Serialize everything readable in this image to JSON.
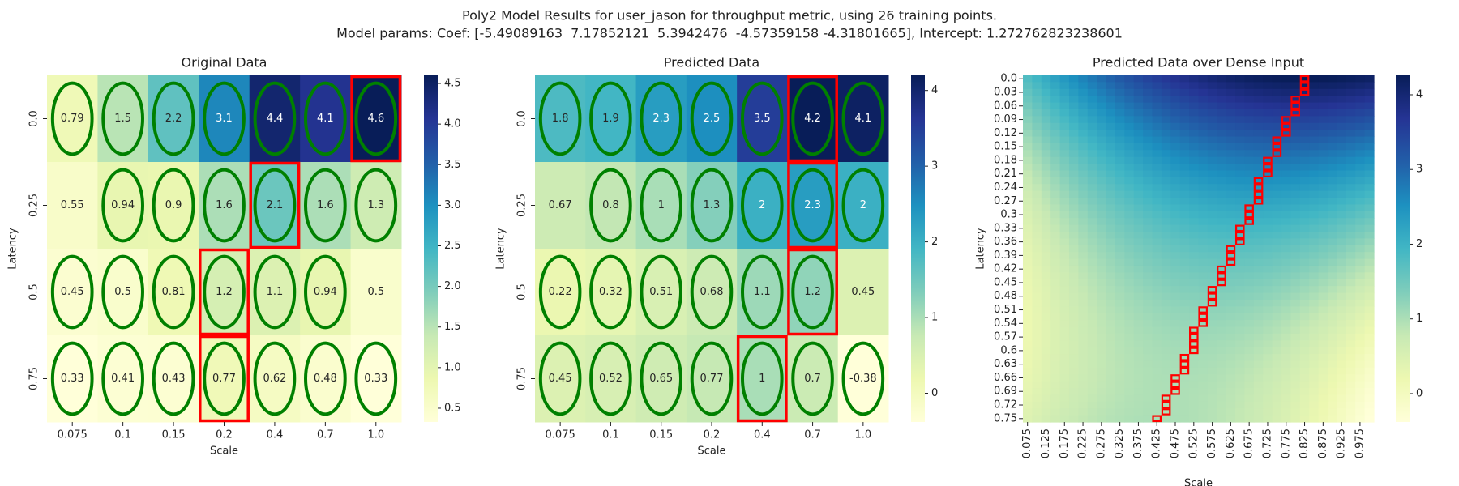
{
  "title": "Poly2 Model Results for user_jason for throughput metric, using 26 training points.",
  "subtitle": "Model params: Coef: [-5.49089163  7.17852121  5.3942476  -4.57359158 -4.31801665], Intercept: 1.272762823238601",
  "chart_data": [
    {
      "type": "heatmap",
      "title": "Original Data",
      "xlabel": "Scale",
      "ylabel": "Latency",
      "categories": [
        "0.075",
        "0.1",
        "0.15",
        "0.2",
        "0.4",
        "0.7",
        "1.0"
      ],
      "y_categories": [
        "0.0",
        "0.25",
        "0.5",
        "0.75"
      ],
      "values": [
        [
          0.79,
          1.5,
          2.2,
          3.1,
          4.4,
          4.1,
          4.6
        ],
        [
          0.55,
          0.94,
          0.9,
          1.6,
          2.1,
          1.6,
          1.3
        ],
        [
          0.45,
          0.5,
          0.81,
          1.2,
          1.1,
          0.94,
          0.5
        ],
        [
          0.33,
          0.41,
          0.43,
          0.77,
          0.62,
          0.48,
          0.33
        ]
      ],
      "marked": [
        [
          true,
          true,
          true,
          true,
          true,
          true,
          true
        ],
        [
          false,
          true,
          true,
          true,
          true,
          true,
          true
        ],
        [
          true,
          true,
          true,
          true,
          true,
          true,
          false
        ],
        [
          true,
          true,
          true,
          true,
          true,
          true,
          true
        ]
      ],
      "zlim": [
        0.33,
        4.6
      ],
      "zticks": [
        0.5,
        {
          "value": 1,
          "label": "1.0"
        },
        1.5,
        {
          "value": 2,
          "label": "2.0"
        },
        2.5,
        {
          "value": 3,
          "label": "3.0"
        },
        3.5,
        {
          "value": 4,
          "label": "4.0"
        },
        4.5
      ],
      "colors": [
        "#ffffd9",
        "#edf8b1",
        "#c7e9b4",
        "#7fcdbb",
        "#41b6c4",
        "#1d91c0",
        "#225ea8",
        "#253494",
        "#081d58"
      ],
      "marker_color": "#008000",
      "highlight_color": "#ff0000"
    },
    {
      "type": "heatmap",
      "title": "Predicted Data",
      "xlabel": "Scale",
      "ylabel": "Latency",
      "categories": [
        "0.075",
        "0.1",
        "0.15",
        "0.2",
        "0.4",
        "0.7",
        "1.0"
      ],
      "y_categories": [
        "0.0",
        "0.25",
        "0.5",
        "0.75"
      ],
      "values": [
        [
          1.8,
          1.9,
          2.3,
          2.5,
          3.5,
          4.2,
          4.1
        ],
        [
          0.67,
          0.8,
          1,
          1.3,
          2,
          2.3,
          2
        ],
        [
          0.22,
          0.32,
          0.51,
          0.68,
          1.1,
          1.2,
          0.45
        ],
        [
          0.45,
          0.52,
          0.65,
          0.77,
          1,
          0.7,
          -0.38
        ]
      ],
      "marked": [
        [
          true,
          true,
          true,
          true,
          true,
          true,
          true
        ],
        [
          false,
          true,
          true,
          true,
          true,
          true,
          true
        ],
        [
          true,
          true,
          true,
          true,
          true,
          true,
          false
        ],
        [
          true,
          true,
          true,
          true,
          true,
          true,
          true
        ]
      ],
      "zlim": [
        -0.38,
        4.2
      ],
      "zticks": [
        0,
        1,
        2,
        3,
        4
      ],
      "colors": [
        "#ffffd9",
        "#edf8b1",
        "#c7e9b4",
        "#7fcdbb",
        "#41b6c4",
        "#1d91c0",
        "#225ea8",
        "#253494",
        "#081d58"
      ],
      "marker_color": "#008000",
      "highlight_color": "#ff0000"
    },
    {
      "type": "dense_heatmap",
      "title": "Predicted Data over Dense Input",
      "xlabel": "Scale",
      "ylabel": "Latency",
      "x": [
        0.075,
        0.1,
        0.125,
        0.15,
        0.175,
        0.2,
        0.225,
        0.25,
        0.275,
        0.3,
        0.325,
        0.35,
        0.375,
        0.4,
        0.425,
        0.45,
        0.475,
        0.5,
        0.525,
        0.55,
        0.575,
        0.6,
        0.625,
        0.65,
        0.675,
        0.7,
        0.725,
        0.75,
        0.775,
        0.8,
        0.825,
        0.85,
        0.875,
        0.9,
        0.925,
        0.95,
        0.975,
        1.0
      ],
      "y": [
        0,
        0.015,
        0.03,
        0.045,
        0.06,
        0.075,
        0.09,
        0.105,
        0.12,
        0.135,
        0.15,
        0.165,
        0.18,
        0.195,
        0.21,
        0.225,
        0.24,
        0.255,
        0.27,
        0.285,
        0.3,
        0.315,
        0.33,
        0.345,
        0.36,
        0.375,
        0.39,
        0.405,
        0.42,
        0.435,
        0.45,
        0.465,
        0.48,
        0.495,
        0.51,
        0.525,
        0.54,
        0.555,
        0.57,
        0.585,
        0.6,
        0.615,
        0.63,
        0.645,
        0.66,
        0.675,
        0.69,
        0.705,
        0.72,
        0.735,
        0.75
      ],
      "xticks": [
        0.075,
        0.125,
        0.175,
        0.225,
        0.275,
        0.325,
        0.375,
        0.425,
        0.475,
        0.525,
        0.575,
        0.625,
        0.675,
        0.725,
        0.775,
        0.825,
        0.875,
        0.925,
        0.975
      ],
      "yticks": [
        {
          "value": 0,
          "label": "0.0"
        },
        0.03,
        0.06,
        0.09,
        0.12,
        0.15,
        0.18,
        0.21,
        0.24,
        0.27,
        0.3,
        0.33,
        0.36,
        0.39,
        0.42,
        0.45,
        0.48,
        0.51,
        0.54,
        0.57,
        0.6,
        0.63,
        0.66,
        0.69,
        0.72,
        0.75
      ],
      "model": {
        "intercept": 1.272762823238601,
        "coef": [
          -5.49089163,
          7.17852121,
          5.3942476,
          -4.57359158,
          -4.31801665
        ]
      },
      "zlim": [
        -0.38,
        4.26
      ],
      "zticks": [
        0,
        1,
        2,
        3,
        4
      ],
      "colors": [
        "#ffffd9",
        "#edf8b1",
        "#c7e9b4",
        "#7fcdbb",
        "#41b6c4",
        "#1d91c0",
        "#225ea8",
        "#253494",
        "#081d58"
      ],
      "highlight_color": "#ff0000"
    }
  ]
}
